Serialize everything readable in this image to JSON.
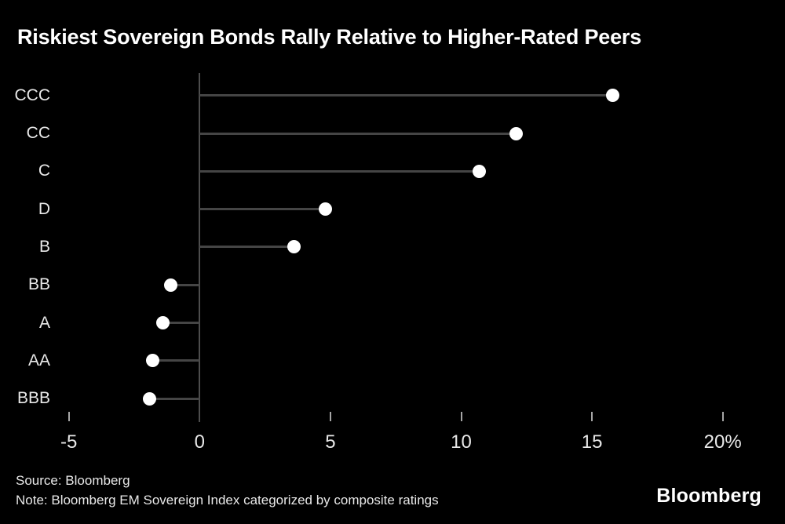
{
  "title": "Riskiest Sovereign Bonds Rally Relative to Higher-Rated Peers",
  "footer": {
    "source": "Source: Bloomberg",
    "note": "Note: Bloomberg EM Sovereign Index categorized by composite ratings",
    "logo": "Bloomberg"
  },
  "chart_data": {
    "type": "bar",
    "variant": "lollipop",
    "orientation": "horizontal",
    "title": "Riskiest Sovereign Bonds Rally Relative to Higher-Rated Peers",
    "categories": [
      "CCC",
      "CC",
      "C",
      "D",
      "B",
      "BB",
      "A",
      "AA",
      "BBB"
    ],
    "values": [
      15.8,
      12.1,
      10.7,
      4.8,
      3.6,
      -1.1,
      -1.4,
      -1.8,
      -1.9
    ],
    "unit": "%",
    "xlabel": "",
    "ylabel": "",
    "xlim": [
      -5,
      20
    ],
    "xticks": [
      -5,
      0,
      5,
      10,
      15,
      20
    ],
    "xtick_labels": [
      "-5",
      "0",
      "5",
      "10",
      "15",
      "20%"
    ],
    "grid": false,
    "legend": "none",
    "colors": {
      "background": "#000000",
      "dot": "#ffffff",
      "stem": "#454545",
      "axis_line": "#4d4d4d",
      "tick": "#a6a6a6",
      "text": "#e8e8e8",
      "title": "#ffffff"
    }
  }
}
